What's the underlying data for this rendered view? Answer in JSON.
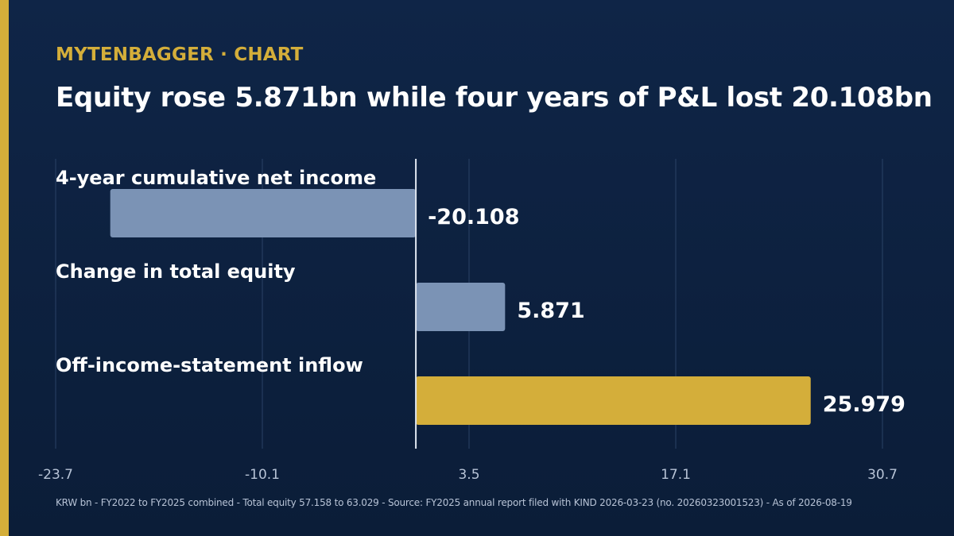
{
  "brand": {
    "name": "MYTENBAGGER",
    "separator": "·",
    "section": "CHART"
  },
  "title": "Equity rose 5.871bn while four years of P&L lost 20.108bn",
  "footnote": "KRW bn - FY2022 to FY2025 combined - Total equity 57.158 to 63.029 - Source: FY2025 annual report filed with KIND 2026-03-23 (no. 20260323001523) - As of 2026-08-19",
  "colors": {
    "accent": "#d4ae3a",
    "bar_default": "#7b93b5",
    "background": "#0f2547",
    "grid": "#2a4266",
    "zero_line": "#dfe6f0"
  },
  "chart_data": {
    "type": "bar",
    "orientation": "horizontal",
    "categories": [
      "4-year cumulative net income",
      "Change in total equity",
      "Off-income-statement inflow"
    ],
    "values": [
      -20.108,
      5.871,
      25.979
    ],
    "value_labels": [
      "-20.108",
      "5.871",
      "25.979"
    ],
    "highlight": [
      false,
      false,
      true
    ],
    "xlim": [
      -23.7,
      30.7
    ],
    "xticks": [
      -23.7,
      -10.1,
      3.5,
      17.1,
      30.7
    ],
    "xtick_labels": [
      "-23.7",
      "-10.1",
      "3.5",
      "17.1",
      "30.7"
    ],
    "grid": true,
    "xlabel": "",
    "ylabel": ""
  }
}
